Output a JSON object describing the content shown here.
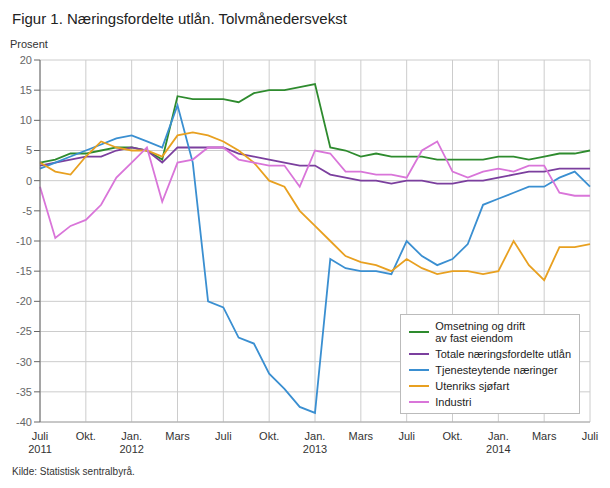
{
  "chart_data": {
    "type": "line",
    "title": "Figur 1. Næringsfordelte utlån. Tolvmånedersvekst",
    "ylabel": "Prosent",
    "source": "Kilde: Statistisk sentralbyrå.",
    "categories": [
      "Juli\n2011",
      null,
      null,
      "Okt.",
      null,
      null,
      "Jan.\n2012",
      null,
      null,
      "Mars",
      null,
      null,
      "Juli",
      null,
      null,
      "Okt.",
      null,
      null,
      "Jan.\n2013",
      null,
      null,
      "Mars",
      null,
      null,
      "Juli",
      null,
      null,
      "Okt.",
      null,
      null,
      "Jan.\n2014",
      null,
      null,
      "Mars",
      null,
      null,
      "Juli"
    ],
    "series": [
      {
        "name": "Omsetning og drift\nav fast eiendom",
        "color": "#2e8b2e",
        "values": [
          3.0,
          3.5,
          4.5,
          4.5,
          5.0,
          5.5,
          5.5,
          5.0,
          3.5,
          14.0,
          13.5,
          13.5,
          13.5,
          13.0,
          14.5,
          15.0,
          15.0,
          15.5,
          16.0,
          5.5,
          5.0,
          4.0,
          4.5,
          4.0,
          4.0,
          4.0,
          3.5,
          3.5,
          3.5,
          3.5,
          4.0,
          4.0,
          3.5,
          4.0,
          4.5,
          4.5,
          5.0
        ]
      },
      {
        "name": "Totale næringsfordelte utlån",
        "color": "#7b3f9e",
        "values": [
          2.5,
          3.0,
          3.5,
          4.0,
          4.0,
          5.0,
          5.5,
          5.0,
          3.0,
          5.5,
          5.5,
          5.5,
          5.5,
          4.5,
          4.0,
          3.5,
          3.0,
          2.5,
          2.5,
          1.0,
          0.5,
          0.0,
          0.0,
          -0.5,
          0.0,
          0.0,
          -0.5,
          -0.5,
          0.0,
          0.0,
          0.5,
          1.0,
          1.5,
          1.5,
          2.0,
          2.0,
          2.0
        ]
      },
      {
        "name": "Tjenesteytende næringer",
        "color": "#3a8fd1",
        "values": [
          2.0,
          3.0,
          4.0,
          5.0,
          6.0,
          7.0,
          7.5,
          6.5,
          5.5,
          12.5,
          3.0,
          -20.0,
          -21.0,
          -26.0,
          -27.0,
          -32.0,
          -34.5,
          -37.5,
          -38.5,
          -13.0,
          -14.5,
          -15.0,
          -15.0,
          -15.5,
          -10.0,
          -12.5,
          -14.0,
          -13.0,
          -10.5,
          -4.0,
          -3.0,
          -2.0,
          -1.0,
          -1.0,
          0.5,
          1.5,
          -1.0
        ]
      },
      {
        "name": "Utenriks sjøfart",
        "color": "#e8a020",
        "values": [
          3.0,
          1.5,
          1.0,
          4.0,
          6.5,
          5.5,
          5.0,
          5.0,
          4.0,
          7.5,
          8.0,
          7.5,
          6.5,
          5.0,
          3.0,
          0.0,
          -1.0,
          -5.0,
          -7.5,
          -10.0,
          -12.5,
          -13.5,
          -14.0,
          -15.0,
          -13.0,
          -14.5,
          -15.5,
          -15.0,
          -15.0,
          -15.5,
          -15.0,
          -10.0,
          -14.0,
          -16.5,
          -11.0,
          -11.0,
          -10.5
        ]
      },
      {
        "name": "Industri",
        "color": "#d975d9",
        "values": [
          -1.0,
          -9.5,
          -7.5,
          -6.5,
          -4.0,
          0.5,
          3.0,
          5.5,
          -3.5,
          3.0,
          3.5,
          5.5,
          5.5,
          3.5,
          3.0,
          2.5,
          2.5,
          -1.0,
          5.0,
          4.5,
          1.5,
          1.5,
          1.0,
          1.0,
          0.5,
          5.0,
          6.5,
          1.5,
          0.5,
          1.5,
          2.0,
          1.5,
          2.5,
          2.5,
          -2.0,
          -2.5,
          -2.5
        ]
      }
    ],
    "ylim": [
      -40,
      20
    ],
    "yticks": [
      -40,
      -35,
      -30,
      -25,
      -20,
      -15,
      -10,
      -5,
      0,
      5,
      10,
      15,
      20
    ],
    "grid": true,
    "legend": "lower right"
  }
}
